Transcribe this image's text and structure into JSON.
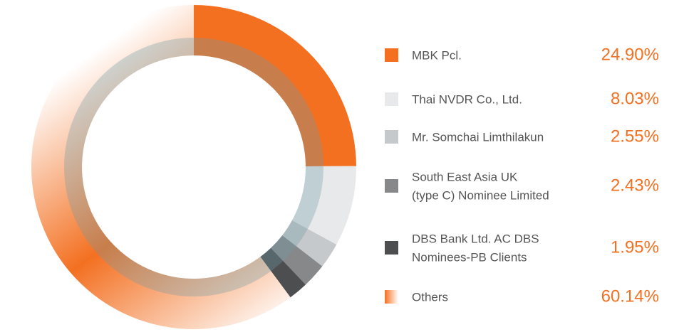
{
  "chart_data": {
    "type": "donut",
    "series": [
      {
        "name": "MBK Pcl.",
        "color": "#f37021",
        "values": [
          24.9
        ],
        "value_labels": [
          "24.90%"
        ]
      },
      {
        "name": "Thai NVDR Co., Ltd.",
        "color": "#e8e9ea",
        "values": [
          8.03
        ],
        "value_labels": [
          "8.03%"
        ]
      },
      {
        "name": "Mr. Somchai Limthilakun",
        "color": "#c5c9cc",
        "values": [
          2.55
        ],
        "value_labels": [
          "2.55%"
        ]
      },
      {
        "name": [
          "South East Asia UK",
          "(type C) Nominee Limited"
        ],
        "color": "#86888a",
        "values": [
          2.43
        ],
        "value_labels": [
          "2.43%"
        ]
      },
      {
        "name": [
          "DBS Bank Ltd. AC DBS",
          "Nominees-PB Clients"
        ],
        "color": "#4d4e50",
        "values": [
          1.95
        ],
        "value_labels": [
          "1.95%"
        ]
      },
      {
        "name": "Others",
        "color": "#f37021",
        "gradient": [
          "#f37021",
          "#ffffff"
        ],
        "values": [
          60.14
        ],
        "value_labels": [
          "60.14%"
        ]
      }
    ]
  }
}
